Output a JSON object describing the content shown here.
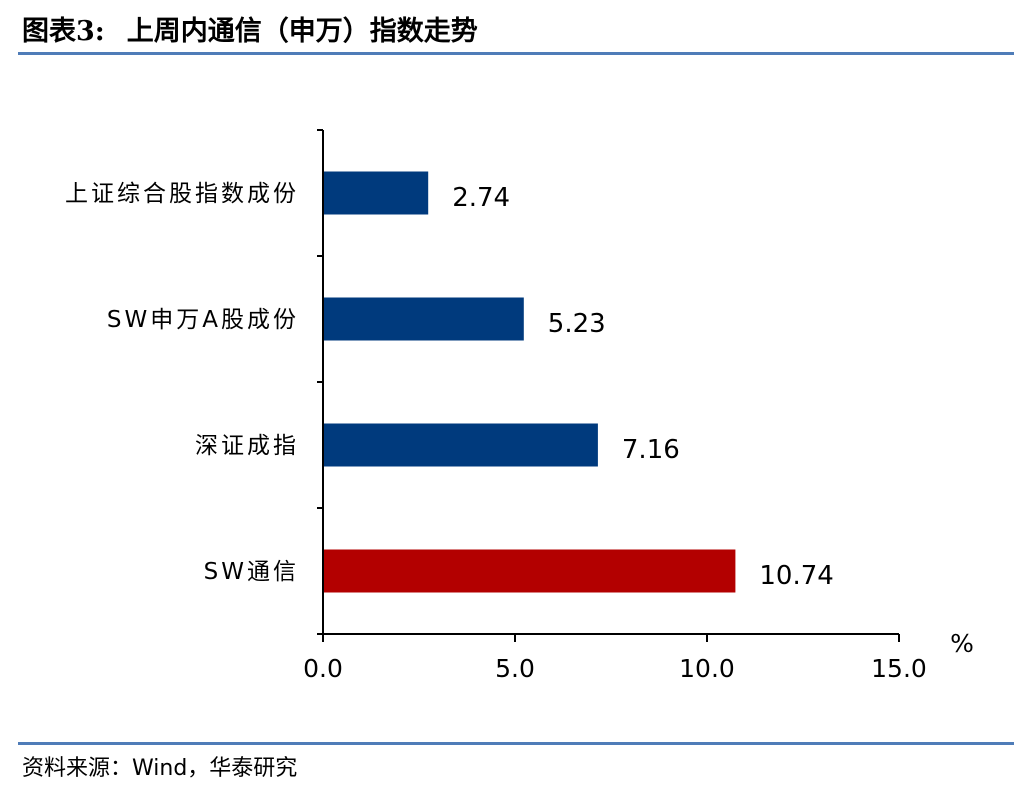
{
  "figure": {
    "number_label": "图表3:",
    "title": "上周内通信（申万）指数走势",
    "source": "资料来源：Wind，华泰研究"
  },
  "colors": {
    "rule": "#4f7cb8",
    "default_bar": "#003a7d",
    "highlight_bar": "#b30000",
    "axis": "#000000"
  },
  "chart_data": {
    "type": "bar",
    "orientation": "horizontal",
    "categories": [
      "上证综合股指数成份",
      "SW申万A股成份",
      "深证成指",
      "SW通信"
    ],
    "values": [
      2.74,
      5.23,
      7.16,
      10.74
    ],
    "value_labels": [
      "2.74",
      "5.23",
      "7.16",
      "10.74"
    ],
    "bar_colors": [
      "#003a7d",
      "#003a7d",
      "#003a7d",
      "#b30000"
    ],
    "xlim": [
      0,
      15
    ],
    "xticks": [
      0,
      5,
      10,
      15
    ],
    "xtick_labels": [
      "0.0",
      "5.0",
      "10.0",
      "15.0"
    ],
    "xunit": "%",
    "title": "",
    "xlabel": "",
    "ylabel": "",
    "grid": false,
    "legend": "none"
  }
}
